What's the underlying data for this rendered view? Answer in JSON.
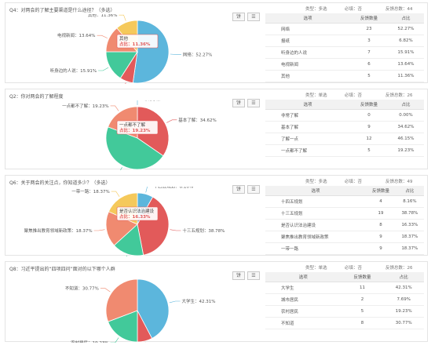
{
  "tool_labels": {
    "view": "饼",
    "menu": "☰"
  },
  "header_labels": {
    "option": "选项",
    "count": "反馈数量",
    "pct": "占比"
  },
  "charts": [
    {
      "title": "Q4：对两会的了解主要渠道是什么途径？（多选）",
      "type_label": "类型：多选",
      "required_label": "必填：否",
      "total_label": "反馈总数：44",
      "tooltip": [
        "其他",
        "占比：11.36%"
      ]
    },
    {
      "title": "Q2：你对两会的了解程度",
      "type_label": "类型：单选",
      "required_label": "必填：否",
      "total_label": "反馈总数：26",
      "tooltip": [
        "一点都不了解",
        "占比：19.23%"
      ]
    },
    {
      "title": "Q6：关于两会的关注点，你知道多少？（多选）",
      "type_label": "类型：多选",
      "required_label": "必填：否",
      "total_label": "反馈总数：49",
      "tooltip": [
        "是否认识法治建设",
        "占比：16.33%"
      ]
    },
    {
      "title": "Q8：习近平提出的“四项四问”面对的以下哪个人群",
      "type_label": "类型：单选",
      "required_label": "必填：否",
      "total_label": "反馈总数：26",
      "tooltip": null
    }
  ],
  "chart_data": [
    {
      "type": "pie",
      "categories": [
        "网络",
        "报纸",
        "听身边的人说",
        "电视新闻",
        "其他"
      ],
      "values": [
        23,
        3,
        7,
        6,
        5
      ],
      "percents": [
        "52.27%",
        "6.82%",
        "15.91%",
        "13.64%",
        "11.36%"
      ],
      "colors": [
        "#5cb6dc",
        "#e25a5a",
        "#42c99a",
        "#f08a70",
        "#f5c95b"
      ]
    },
    {
      "type": "pie",
      "categories": [
        "非常了解",
        "基本了解",
        "了解一点",
        "一点都不了解"
      ],
      "values": [
        0,
        9,
        12,
        5
      ],
      "percents": [
        "0.00%",
        "34.62%",
        "46.15%",
        "19.23%"
      ],
      "colors": [
        "#5cb6dc",
        "#e25a5a",
        "#42c99a",
        "#f08a70"
      ]
    },
    {
      "type": "pie",
      "categories": [
        "十四五规划",
        "十三五规划",
        "是否认识法治建设",
        "聚焦推出教育领域新政策",
        "一带一路"
      ],
      "values": [
        4,
        19,
        8,
        9,
        9
      ],
      "percents": [
        "8.16%",
        "38.78%",
        "16.33%",
        "18.37%",
        "18.37%"
      ],
      "colors": [
        "#5cb6dc",
        "#e25a5a",
        "#42c99a",
        "#f08a70",
        "#f5c95b"
      ]
    },
    {
      "type": "pie",
      "categories": [
        "大学生",
        "城市居民",
        "农村居民",
        "不知道"
      ],
      "values": [
        11,
        2,
        5,
        8
      ],
      "percents": [
        "42.31%",
        "7.69%",
        "19.23%",
        "30.77%"
      ],
      "colors": [
        "#5cb6dc",
        "#e25a5a",
        "#42c99a",
        "#f08a70"
      ]
    }
  ]
}
